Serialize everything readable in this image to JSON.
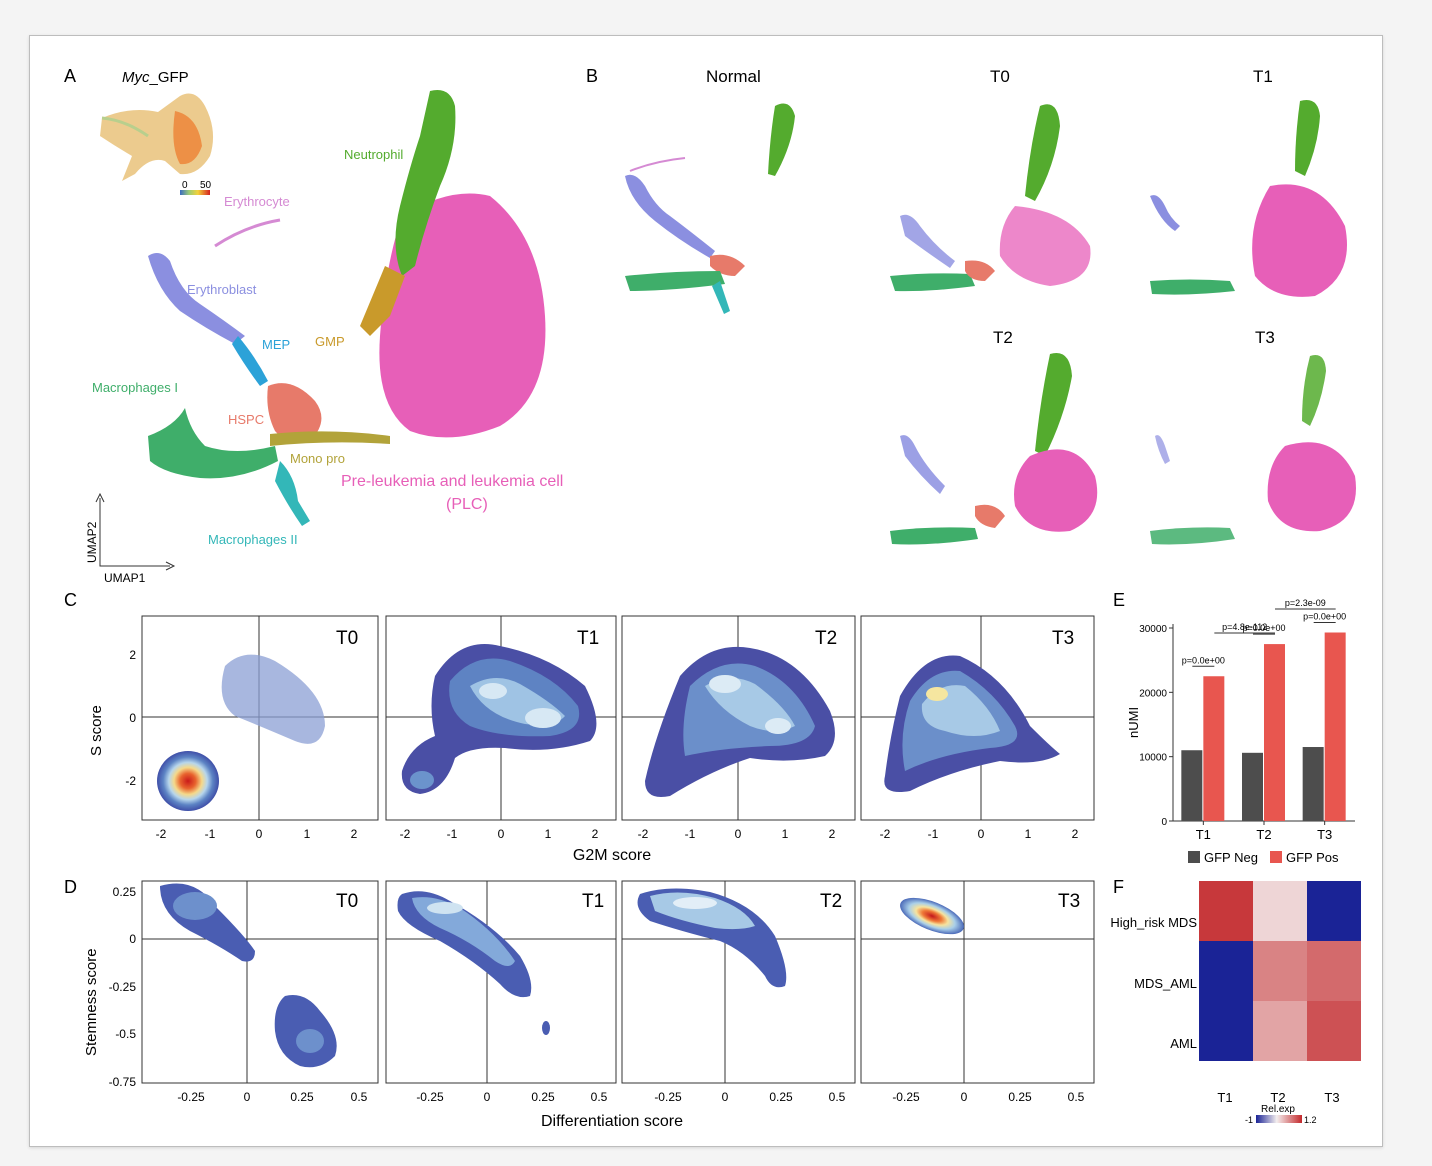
{
  "panels": {
    "A": "A",
    "B": "B",
    "C": "C",
    "D": "D",
    "E": "E",
    "F": "F"
  },
  "panelA": {
    "inset_title_italic": "Myc",
    "inset_title_rest": "_GFP",
    "inset_scale_min": "0",
    "inset_scale_max": "50",
    "clusters": [
      {
        "label": "Neutrophil",
        "color": "#54ab2e"
      },
      {
        "label": "Erythrocyte",
        "color": "#d58ad3"
      },
      {
        "label": "Erythroblast",
        "color": "#8b8fe0"
      },
      {
        "label": "MEP",
        "color": "#2ca2d8"
      },
      {
        "label": "GMP",
        "color": "#c99a2b"
      },
      {
        "label": "Macrophages I",
        "color": "#3fae6a"
      },
      {
        "label": "HSPC",
        "color": "#e77a6a"
      },
      {
        "label": "Mono pro",
        "color": "#b2a33a"
      },
      {
        "label": "Pre-leukemia and leukemia cell",
        "color": "#e75fb8"
      },
      {
        "label": "(PLC)",
        "color": "#e75fb8"
      },
      {
        "label": "Macrophages II",
        "color": "#33b7b8"
      }
    ],
    "xaxis": "UMAP1",
    "yaxis": "UMAP2"
  },
  "panelB": {
    "titles": [
      "Normal",
      "T0",
      "T1",
      "T2",
      "T3"
    ]
  },
  "panelC": {
    "subplots": [
      "T0",
      "T1",
      "T2",
      "T3"
    ],
    "xlabel": "G2M score",
    "ylabel": "S score",
    "xticks": [
      "-2",
      "-1",
      "0",
      "1",
      "2"
    ],
    "yticks": [
      "2",
      "0",
      "-2"
    ]
  },
  "panelD": {
    "subplots": [
      "T0",
      "T1",
      "T2",
      "T3"
    ],
    "xlabel": "Differentiation score",
    "ylabel": "Stemness score",
    "xticks": [
      "-0.25",
      "0",
      "0.25",
      "0.5"
    ],
    "yticks": [
      "0.25",
      "0",
      "-0.25",
      "-0.5",
      "-0.75"
    ]
  },
  "chart_data": [
    {
      "type": "bar",
      "ylabel": "nUMI",
      "categories": [
        "T1",
        "T2",
        "T3"
      ],
      "ylim": [
        0,
        30000
      ],
      "yticks": [
        "0",
        "10000",
        "20000",
        "30000"
      ],
      "series": [
        {
          "name": "GFP Neg",
          "color": "#4d4d4d",
          "values": [
            11000,
            10600,
            11500
          ]
        },
        {
          "name": "GFP Pos",
          "color": "#e8564f",
          "values": [
            22500,
            27500,
            29300
          ]
        }
      ],
      "annotations": [
        "p=0.0e+00",
        "p=0.0e+00",
        "p=0.0e+00",
        "p=4.8e-112",
        "p=2.3e-09"
      ]
    },
    {
      "type": "heatmap",
      "rows": [
        "High_risk MDS",
        "MDS_AML",
        "AML"
      ],
      "columns": [
        "T1",
        "T2",
        "T3"
      ],
      "values": [
        [
          1.1,
          0.15,
          -1.0
        ],
        [
          -1.0,
          0.65,
          0.8
        ],
        [
          -1.0,
          0.45,
          0.95
        ]
      ],
      "legend_title": "Rel.exp",
      "scale_min": "-1",
      "scale_max": "1.2"
    }
  ]
}
